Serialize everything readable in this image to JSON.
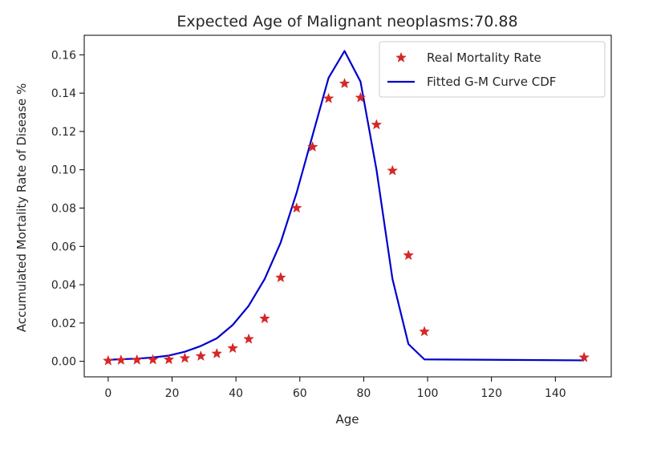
{
  "chart_data": {
    "type": "scatter",
    "title": "Expected Age of Malignant neoplasms:70.88",
    "xlabel": "Age",
    "ylabel": "Accumulated Mortality Rate of Disease %",
    "xlim": [
      -7.5,
      157.5
    ],
    "ylim": [
      -0.0081,
      0.1702
    ],
    "xticks": [
      0,
      20,
      40,
      60,
      80,
      100,
      120,
      140
    ],
    "yticks": [
      0.0,
      0.02,
      0.04,
      0.06,
      0.08,
      0.1,
      0.12,
      0.14,
      0.16
    ],
    "ytick_labels": [
      "0.00",
      "0.02",
      "0.04",
      "0.06",
      "0.08",
      "0.10",
      "0.12",
      "0.14",
      "0.16"
    ],
    "grid": false,
    "legend_position": "upper-right",
    "series": [
      {
        "name": "Real Mortality Rate",
        "kind": "scatter",
        "marker": "star",
        "color": "#d62728",
        "x": [
          0,
          4,
          9,
          14,
          19,
          24,
          29,
          34,
          39,
          44,
          49,
          54,
          59,
          64,
          69,
          74,
          79,
          84,
          89,
          94,
          99,
          149
        ],
        "y": [
          0.0003,
          0.0006,
          0.0007,
          0.0008,
          0.0009,
          0.0016,
          0.0027,
          0.004,
          0.0068,
          0.0116,
          0.0223,
          0.0437,
          0.08,
          0.1119,
          0.1372,
          0.145,
          0.1376,
          0.1235,
          0.0995,
          0.0553,
          0.0155,
          0.002
        ]
      },
      {
        "name": "Fitted G-M Curve CDF",
        "kind": "line",
        "color": "#0000cd",
        "x": [
          0,
          4,
          9,
          14,
          19,
          24,
          29,
          34,
          39,
          44,
          49,
          54,
          59,
          64,
          69,
          74,
          79,
          84,
          89,
          94,
          99,
          149
        ],
        "y": [
          0.0008,
          0.0011,
          0.0014,
          0.002,
          0.003,
          0.005,
          0.008,
          0.012,
          0.019,
          0.029,
          0.043,
          0.062,
          0.088,
          0.118,
          0.148,
          0.162,
          0.146,
          0.1,
          0.043,
          0.009,
          0.001,
          0.0005
        ]
      }
    ]
  }
}
